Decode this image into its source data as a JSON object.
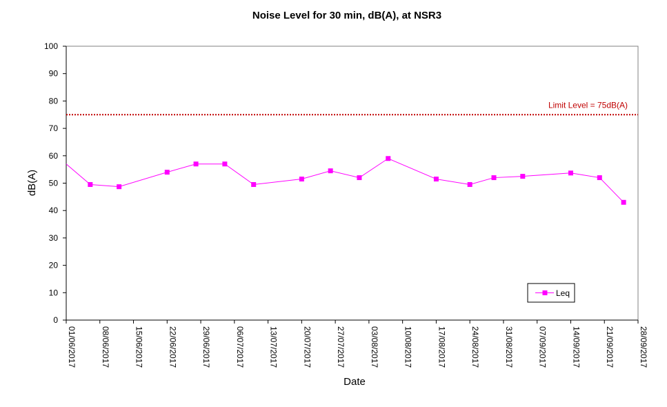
{
  "chart_data": {
    "type": "line",
    "title": "Noise Level for 30 min, dB(A), at NSR3",
    "xlabel": "Date",
    "ylabel": "dB(A)",
    "ylim": [
      0,
      100
    ],
    "yticks": [
      0,
      10,
      20,
      30,
      40,
      50,
      60,
      70,
      80,
      90,
      100
    ],
    "xlim": [
      "01/06/2017",
      "28/09/2017"
    ],
    "xticks": [
      "01/06/2017",
      "08/06/2017",
      "15/06/2017",
      "22/06/2017",
      "29/06/2017",
      "06/07/2017",
      "13/07/2017",
      "20/07/2017",
      "27/07/2017",
      "03/08/2017",
      "10/08/2017",
      "17/08/2017",
      "24/08/2017",
      "31/08/2017",
      "07/09/2017",
      "14/09/2017",
      "21/09/2017",
      "28/09/2017"
    ],
    "grid": false,
    "legend_position": "bottom-right",
    "series": [
      {
        "name": "Leq",
        "color": "#ff00ff",
        "marker": "square",
        "points": [
          {
            "x": "01/06/2017",
            "y": 57,
            "marker": false
          },
          {
            "x": "06/06/2017",
            "y": 49.5
          },
          {
            "x": "12/06/2017",
            "y": 48.7
          },
          {
            "x": "22/06/2017",
            "y": 54
          },
          {
            "x": "28/06/2017",
            "y": 57
          },
          {
            "x": "04/07/2017",
            "y": 57
          },
          {
            "x": "10/07/2017",
            "y": 49.5
          },
          {
            "x": "20/07/2017",
            "y": 51.5
          },
          {
            "x": "26/07/2017",
            "y": 54.5
          },
          {
            "x": "01/08/2017",
            "y": 52
          },
          {
            "x": "07/08/2017",
            "y": 59
          },
          {
            "x": "17/08/2017",
            "y": 51.5
          },
          {
            "x": "24/08/2017",
            "y": 49.5
          },
          {
            "x": "29/08/2017",
            "y": 52
          },
          {
            "x": "04/09/2017",
            "y": 52.5
          },
          {
            "x": "14/09/2017",
            "y": 53.7
          },
          {
            "x": "20/09/2017",
            "y": 52
          },
          {
            "x": "25/09/2017",
            "y": 43
          }
        ]
      }
    ],
    "reference_lines": [
      {
        "y": 75,
        "label": "Limit Level  = 75dB(A)",
        "color": "#c00000",
        "style": "dotted"
      }
    ]
  }
}
